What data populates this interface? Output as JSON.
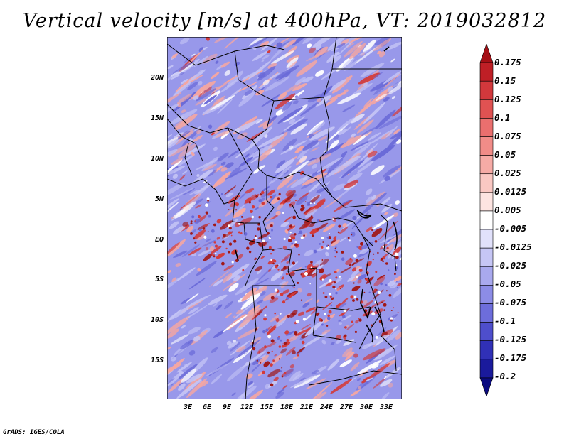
{
  "title": "Vertical velocity [m/s] at 400hPa, VT: 2019032812",
  "credit": "GrADS: IGES/COLA",
  "lat_labels": [
    "20N",
    "15N",
    "10N",
    "5N",
    "EQ",
    "5S",
    "10S",
    "15S"
  ],
  "lon_labels": [
    "3E",
    "6E",
    "9E",
    "12E",
    "15E",
    "18E",
    "21E",
    "24E",
    "27E",
    "30E",
    "33E"
  ],
  "colorbar": {
    "labels": [
      "0.175",
      "0.15",
      "0.125",
      "0.1",
      "0.075",
      "0.05",
      "0.025",
      "0.0125",
      "0.005",
      "-0.005",
      "-0.0125",
      "-0.025",
      "-0.05",
      "-0.075",
      "-0.1",
      "-0.125",
      "-0.175",
      "-0.2"
    ],
    "colors": [
      "#a50f15",
      "#bf1f26",
      "#d2383c",
      "#e05252",
      "#ea6f6e",
      "#f18c88",
      "#f6aba6",
      "#fac8c3",
      "#fde4e1",
      "#ffffff",
      "#e1e1fb",
      "#c6c6f5",
      "#a9a9ee",
      "#8c8ce6",
      "#6d6ddb",
      "#4e4ecc",
      "#3030b7",
      "#1a1a9c",
      "#0b0b80"
    ]
  },
  "field_colors": {
    "base": "#9898ea",
    "light": "#c4c4f5",
    "dark": "#6a6ad8",
    "pink": "#f4a6a2",
    "red": "#d23a3a",
    "deep_red": "#a01818"
  }
}
